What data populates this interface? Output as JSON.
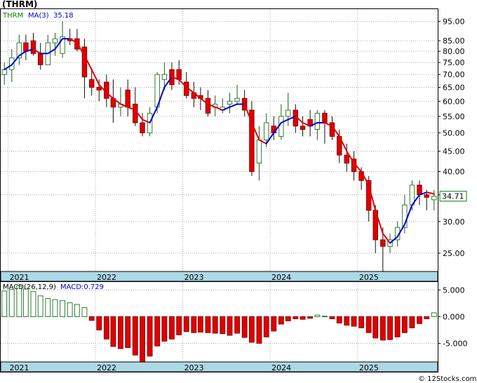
{
  "title": "(THRM)",
  "footer": "© 12Stocks.com",
  "colors": {
    "up": "#2e7d32",
    "down": "#e00000",
    "ma_up": "#0000cc",
    "ma_down": "#e00000",
    "axis_band": "#add8e6",
    "grid": "#aaaaaa",
    "ticker_label_text": "#008000",
    "ma_label_text": "#0000cc",
    "macd_name_text": "#000000",
    "macd_value_text": "#0000cc"
  },
  "price_panel": {
    "ticker": "THRM",
    "ma_label": "MA(3)",
    "ma_value": "35.18",
    "last_price": "34.71",
    "scale": "log",
    "ylim": [
      22.5,
      102
    ],
    "ytick_values": [
      25,
      30,
      35,
      40,
      45,
      50,
      55,
      60,
      65,
      70,
      75,
      80,
      85,
      95
    ],
    "ytick_labels": [
      "25.00",
      "30.00",
      "35.00",
      "40.00",
      "45.00",
      "50.00",
      "55.00",
      "60.00",
      "65.00",
      "70.00",
      "75.00",
      "80.00",
      "85.00",
      "95.00"
    ]
  },
  "macd_panel": {
    "label_name": "MACD(26,12,9)",
    "label_value": "MACD:0.729",
    "ylim": [
      -8.5,
      6.5
    ],
    "ytick_values": [
      5,
      0,
      -5
    ],
    "ytick_labels": [
      "5.000",
      "0.000",
      "-5.000"
    ]
  },
  "x_axis": {
    "start": "2020-12-01",
    "end": "2025-11-01",
    "year_labels": [
      {
        "date": "2021-01-01",
        "label": "2021"
      },
      {
        "date": "2022-01-01",
        "label": "2022"
      },
      {
        "date": "2023-01-01",
        "label": "2023"
      },
      {
        "date": "2024-01-01",
        "label": "2024"
      },
      {
        "date": "2025-01-01",
        "label": "2025"
      }
    ]
  },
  "chart_data": [
    {
      "type": "candlestick",
      "scale": "log",
      "ylim": [
        22.5,
        102
      ],
      "series": [
        {
          "name": "THRM",
          "ohlc": [
            [
              "2020-12-01",
              70,
              75,
              66,
              72
            ],
            [
              "2021-01-01",
              72,
              81,
              67,
              77
            ],
            [
              "2021-02-01",
              77,
              88,
              74,
              84
            ],
            [
              "2021-03-01",
              84,
              88,
              76,
              80
            ],
            [
              "2021-04-01",
              85,
              89,
              78,
              79
            ],
            [
              "2021-05-01",
              79,
              84,
              72,
              74
            ],
            [
              "2021-06-01",
              74,
              88,
              74,
              84
            ],
            [
              "2021-07-01",
              84,
              89,
              78,
              86
            ],
            [
              "2021-08-01",
              79,
              95,
              77,
              87
            ],
            [
              "2021-09-01",
              86,
              91,
              83,
              85
            ],
            [
              "2021-10-01",
              86,
              91,
              80,
              81
            ],
            [
              "2021-11-01",
              82,
              86,
              61,
              69
            ],
            [
              "2021-12-01",
              68,
              72,
              62,
              65
            ],
            [
              "2022-01-01",
              65,
              68,
              60,
              64
            ],
            [
              "2022-02-01",
              67,
              70,
              58,
              61
            ],
            [
              "2022-03-01",
              61,
              68,
              53,
              58
            ],
            [
              "2022-04-01",
              58,
              65,
              55,
              59
            ],
            [
              "2022-05-01",
              64,
              68,
              55,
              58
            ],
            [
              "2022-06-01",
              59,
              65,
              52,
              53
            ],
            [
              "2022-07-01",
              53,
              56,
              49,
              50
            ],
            [
              "2022-08-01",
              50,
              58,
              49,
              56
            ],
            [
              "2022-09-01",
              58,
              71,
              56,
              70
            ],
            [
              "2022-10-01",
              68,
              75,
              64,
              70
            ],
            [
              "2022-11-01",
              72,
              75,
              64,
              66
            ],
            [
              "2022-12-01",
              72,
              76,
              66,
              68
            ],
            [
              "2023-01-01",
              67,
              71,
              61,
              62
            ],
            [
              "2023-02-01",
              63,
              67,
              58,
              61
            ],
            [
              "2023-03-01",
              62,
              65,
              57,
              61
            ],
            [
              "2023-04-01",
              61,
              64,
              55,
              56
            ],
            [
              "2023-05-01",
              58,
              62,
              55,
              59
            ],
            [
              "2023-06-01",
              57,
              61,
              56,
              58
            ],
            [
              "2023-07-01",
              59,
              63,
              56,
              60
            ],
            [
              "2023-08-01",
              60,
              66,
              59,
              61
            ],
            [
              "2023-09-01",
              61,
              64,
              55,
              57
            ],
            [
              "2023-10-01",
              57,
              60,
              39,
              40
            ],
            [
              "2023-11-01",
              42,
              52,
              38,
              48
            ],
            [
              "2023-12-01",
              48,
              56,
              46,
              53
            ],
            [
              "2024-01-01",
              52,
              55,
              48,
              50
            ],
            [
              "2024-02-01",
              49,
              59,
              48,
              55
            ],
            [
              "2024-03-01",
              55,
              63,
              52,
              57
            ],
            [
              "2024-04-01",
              57,
              59,
              50,
              52
            ],
            [
              "2024-05-01",
              52,
              55,
              49,
              51
            ],
            [
              "2024-06-01",
              54,
              57,
              49,
              52
            ],
            [
              "2024-07-01",
              51,
              57,
              48,
              56
            ],
            [
              "2024-08-01",
              56,
              57,
              47,
              53
            ],
            [
              "2024-09-01",
              53,
              55,
              48,
              49
            ],
            [
              "2024-10-01",
              49,
              51,
              42,
              44
            ],
            [
              "2024-11-01",
              44,
              47,
              40,
              42
            ],
            [
              "2024-12-01",
              43,
              45,
              38,
              40
            ],
            [
              "2025-01-01",
              40,
              41,
              36,
              38
            ],
            [
              "2025-02-01",
              38,
              39,
              30,
              32
            ],
            [
              "2025-03-01",
              32,
              33,
              25,
              27
            ],
            [
              "2025-04-01",
              27,
              29,
              22,
              26
            ],
            [
              "2025-05-01",
              26,
              28,
              25,
              27
            ],
            [
              "2025-06-01",
              27,
              30,
              26,
              29
            ],
            [
              "2025-07-01",
              29,
              35,
              28,
              33
            ],
            [
              "2025-08-01",
              33,
              38,
              32,
              37
            ],
            [
              "2025-09-01",
              37,
              38,
              33,
              35
            ],
            [
              "2025-10-01",
              35,
              36,
              32,
              34.5
            ],
            [
              "2025-11-01",
              34,
              36,
              32,
              34.71
            ]
          ]
        },
        {
          "name": "MA(3)",
          "points": [
            [
              "2020-12-01",
              72
            ],
            [
              "2021-01-01",
              74
            ],
            [
              "2021-02-01",
              78
            ],
            [
              "2021-03-01",
              80
            ],
            [
              "2021-04-01",
              81
            ],
            [
              "2021-05-01",
              79
            ],
            [
              "2021-06-01",
              79
            ],
            [
              "2021-07-01",
              81
            ],
            [
              "2021-08-01",
              86
            ],
            [
              "2021-09-01",
              86
            ],
            [
              "2021-10-01",
              84
            ],
            [
              "2021-11-01",
              78
            ],
            [
              "2021-12-01",
              72
            ],
            [
              "2022-01-01",
              66
            ],
            [
              "2022-02-01",
              63
            ],
            [
              "2022-03-01",
              61
            ],
            [
              "2022-04-01",
              59
            ],
            [
              "2022-05-01",
              58
            ],
            [
              "2022-06-01",
              57
            ],
            [
              "2022-07-01",
              54
            ],
            [
              "2022-08-01",
              53
            ],
            [
              "2022-09-01",
              58
            ],
            [
              "2022-10-01",
              65
            ],
            [
              "2022-11-01",
              69
            ],
            [
              "2022-12-01",
              68
            ],
            [
              "2023-01-01",
              65
            ],
            [
              "2023-02-01",
              63
            ],
            [
              "2023-03-01",
              61
            ],
            [
              "2023-04-01",
              59
            ],
            [
              "2023-05-01",
              58
            ],
            [
              "2023-06-01",
              57
            ],
            [
              "2023-07-01",
              58
            ],
            [
              "2023-08-01",
              59
            ],
            [
              "2023-09-01",
              59
            ],
            [
              "2023-10-01",
              53
            ],
            [
              "2023-11-01",
              48
            ],
            [
              "2023-12-01",
              47
            ],
            [
              "2024-01-01",
              50
            ],
            [
              "2024-02-01",
              53
            ],
            [
              "2024-03-01",
              54
            ],
            [
              "2024-04-01",
              55
            ],
            [
              "2024-05-01",
              53
            ],
            [
              "2024-06-01",
              52
            ],
            [
              "2024-07-01",
              53
            ],
            [
              "2024-08-01",
              53
            ],
            [
              "2024-09-01",
              52
            ],
            [
              "2024-10-01",
              49
            ],
            [
              "2024-11-01",
              45
            ],
            [
              "2024-12-01",
              42
            ],
            [
              "2025-01-01",
              40
            ],
            [
              "2025-02-01",
              37
            ],
            [
              "2025-03-01",
              32
            ],
            [
              "2025-04-01",
              28
            ],
            [
              "2025-05-01",
              26.5
            ],
            [
              "2025-06-01",
              27.5
            ],
            [
              "2025-07-01",
              29.5
            ],
            [
              "2025-08-01",
              33
            ],
            [
              "2025-09-01",
              35
            ],
            [
              "2025-10-01",
              35.5
            ],
            [
              "2025-11-01",
              35.18
            ]
          ]
        }
      ]
    },
    {
      "type": "bar",
      "ylim": [
        -8.5,
        6.5
      ],
      "series": [
        {
          "name": "MACD(26,12,9)",
          "points": [
            [
              "2020-12-01",
              4.8
            ],
            [
              "2021-01-01",
              5.1
            ],
            [
              "2021-02-01",
              5.8
            ],
            [
              "2021-03-01",
              5.2
            ],
            [
              "2021-04-01",
              4.7
            ],
            [
              "2021-05-01",
              3.9
            ],
            [
              "2021-06-01",
              3.4
            ],
            [
              "2021-07-01",
              3.2
            ],
            [
              "2021-08-01",
              3.0
            ],
            [
              "2021-09-01",
              2.6
            ],
            [
              "2021-10-01",
              2.3
            ],
            [
              "2021-11-01",
              1.7
            ],
            [
              "2021-12-01",
              -0.7
            ],
            [
              "2022-01-01",
              -2.5
            ],
            [
              "2022-02-01",
              -4.2
            ],
            [
              "2022-03-01",
              -5.6
            ],
            [
              "2022-04-01",
              -6.0
            ],
            [
              "2022-05-01",
              -5.8
            ],
            [
              "2022-06-01",
              -7.2
            ],
            [
              "2022-07-01",
              -8.5
            ],
            [
              "2022-08-01",
              -7.4
            ],
            [
              "2022-09-01",
              -5.5
            ],
            [
              "2022-10-01",
              -4.6
            ],
            [
              "2022-11-01",
              -4.2
            ],
            [
              "2022-12-01",
              -3.4
            ],
            [
              "2023-01-01",
              -2.8
            ],
            [
              "2023-02-01",
              -3.0
            ],
            [
              "2023-03-01",
              -2.9
            ],
            [
              "2023-04-01",
              -3.0
            ],
            [
              "2023-05-01",
              -3.1
            ],
            [
              "2023-06-01",
              -3.2
            ],
            [
              "2023-07-01",
              -3.5
            ],
            [
              "2023-08-01",
              -3.1
            ],
            [
              "2023-09-01",
              -3.9
            ],
            [
              "2023-10-01",
              -4.8
            ],
            [
              "2023-11-01",
              -5.0
            ],
            [
              "2023-12-01",
              -3.8
            ],
            [
              "2024-01-01",
              -2.7
            ],
            [
              "2024-02-01",
              -1.4
            ],
            [
              "2024-03-01",
              -0.8
            ],
            [
              "2024-04-01",
              -0.4
            ],
            [
              "2024-05-01",
              -0.5
            ],
            [
              "2024-06-01",
              -0.3
            ],
            [
              "2024-07-01",
              0.3
            ],
            [
              "2024-08-01",
              0.1
            ],
            [
              "2024-09-01",
              -0.4
            ],
            [
              "2024-10-01",
              -1.2
            ],
            [
              "2024-11-01",
              -1.6
            ],
            [
              "2024-12-01",
              -1.8
            ],
            [
              "2025-01-01",
              -2.1
            ],
            [
              "2025-02-01",
              -3.0
            ],
            [
              "2025-03-01",
              -4.0
            ],
            [
              "2025-04-01",
              -4.4
            ],
            [
              "2025-05-01",
              -4.3
            ],
            [
              "2025-06-01",
              -3.8
            ],
            [
              "2025-07-01",
              -3.0
            ],
            [
              "2025-08-01",
              -2.1
            ],
            [
              "2025-09-01",
              -1.3
            ],
            [
              "2025-10-01",
              -0.4
            ],
            [
              "2025-11-01",
              0.729
            ]
          ]
        }
      ]
    }
  ]
}
